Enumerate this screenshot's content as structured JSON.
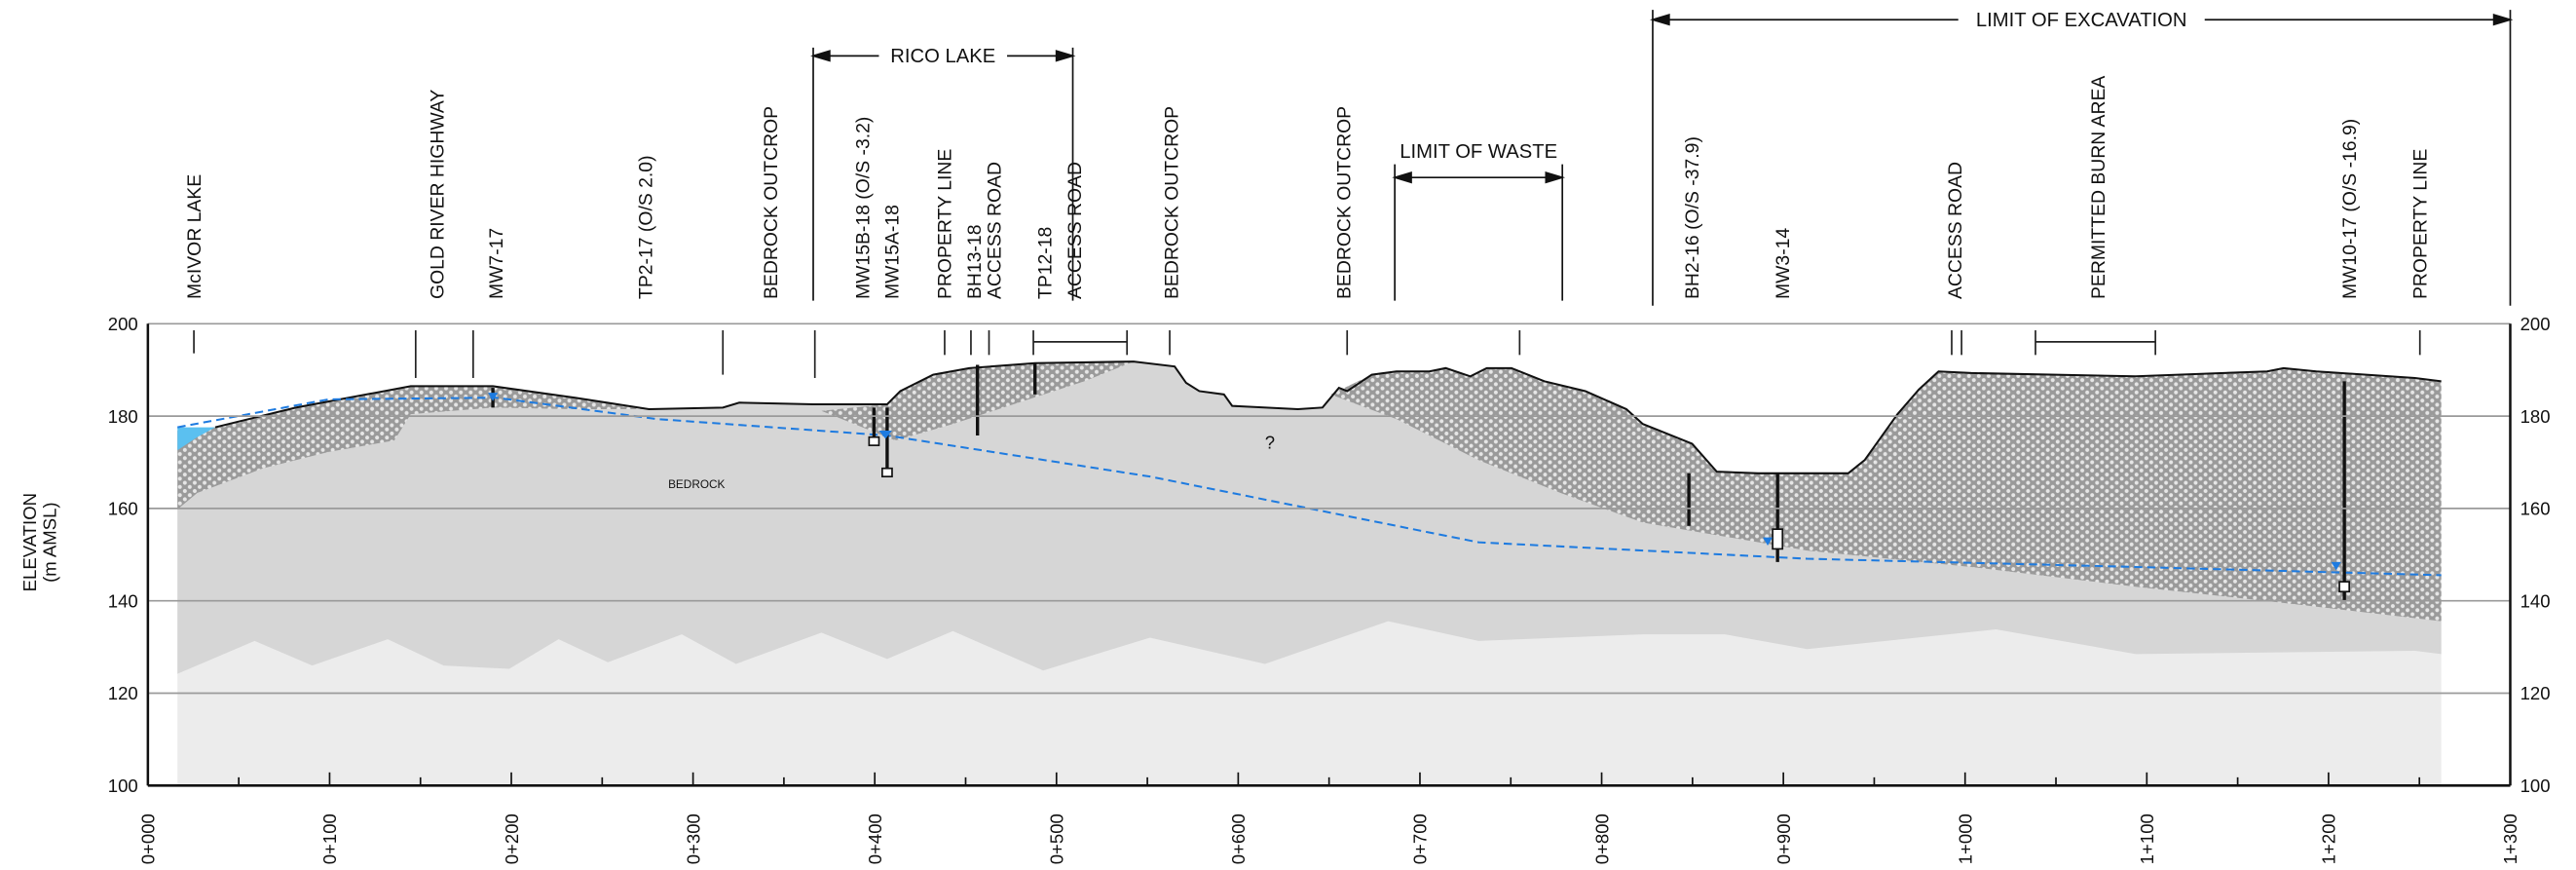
{
  "axes": {
    "y_label": [
      "ELEVATION",
      "(m AMSL)"
    ],
    "yticks": [
      100,
      120,
      140,
      160,
      180,
      200
    ],
    "xticks": [
      "0+000",
      "0+100",
      "0+200",
      "0+300",
      "0+400",
      "0+500",
      "0+600",
      "0+700",
      "0+800",
      "0+900",
      "1+000",
      "1+100",
      "1+200",
      "1+300"
    ]
  },
  "features": [
    "McIVOR LAKE",
    "GOLD RIVER HIGHWAY",
    "MW7-17",
    "TP2-17 (O/S 2.0)",
    "BEDROCK OUTCROP",
    "MW15B-18  (O/S -3.2)",
    "MW15A-18",
    "PROPERTY LINE",
    "BH13-18",
    "ACCESS ROAD",
    "TP12-18",
    "ACCESS ROAD",
    "BEDROCK OUTCROP",
    "BEDROCK OUTCROP",
    "BH2-16  (O/S -37.9)",
    "MW3-14",
    "ACCESS ROAD",
    "PERMITTED BURN AREA",
    "MW10-17  (O/S -16.9)",
    "PROPERTY LINE"
  ],
  "spans": {
    "rico_lake": "RICO LAKE",
    "limit_of_waste": "LIMIT OF WASTE",
    "limit_of_excavation": "LIMIT OF EXCAVATION"
  },
  "annotations": {
    "bedrock": "BEDROCK",
    "unknown": "?"
  }
}
